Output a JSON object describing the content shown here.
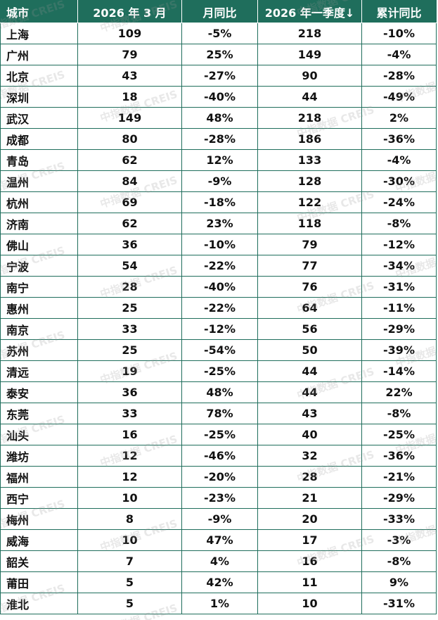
{
  "headers": [
    "城市",
    "2026 年 3 月",
    "月同比",
    "2026 年一季度↓",
    "累计同比"
  ],
  "watermark": "中指数据 CREIS",
  "colors": {
    "header_bg": "#1f6e5c",
    "positive": "#c00000",
    "negative": "#18a448"
  },
  "rows": [
    [
      "上海",
      "109",
      "-5%",
      "218",
      "-10%"
    ],
    [
      "广州",
      "79",
      "25%",
      "149",
      "-4%"
    ],
    [
      "北京",
      "43",
      "-27%",
      "90",
      "-28%"
    ],
    [
      "深圳",
      "18",
      "-40%",
      "44",
      "-49%"
    ],
    [
      "武汉",
      "149",
      "48%",
      "218",
      "2%"
    ],
    [
      "成都",
      "80",
      "-28%",
      "186",
      "-36%"
    ],
    [
      "青岛",
      "62",
      "12%",
      "133",
      "-4%"
    ],
    [
      "温州",
      "84",
      "-9%",
      "128",
      "-30%"
    ],
    [
      "杭州",
      "69",
      "-18%",
      "122",
      "-24%"
    ],
    [
      "济南",
      "62",
      "23%",
      "118",
      "-8%"
    ],
    [
      "佛山",
      "36",
      "-10%",
      "79",
      "-12%"
    ],
    [
      "宁波",
      "54",
      "-22%",
      "77",
      "-34%"
    ],
    [
      "南宁",
      "28",
      "-40%",
      "76",
      "-31%"
    ],
    [
      "惠州",
      "25",
      "-22%",
      "64",
      "-11%"
    ],
    [
      "南京",
      "33",
      "-12%",
      "56",
      "-29%"
    ],
    [
      "苏州",
      "25",
      "-54%",
      "50",
      "-39%"
    ],
    [
      "清远",
      "19",
      "-25%",
      "44",
      "-14%"
    ],
    [
      "泰安",
      "36",
      "48%",
      "44",
      "22%"
    ],
    [
      "东莞",
      "33",
      "78%",
      "43",
      "-8%"
    ],
    [
      "汕头",
      "16",
      "-25%",
      "40",
      "-25%"
    ],
    [
      "潍坊",
      "12",
      "-46%",
      "32",
      "-36%"
    ],
    [
      "福州",
      "12",
      "-20%",
      "28",
      "-21%"
    ],
    [
      "西宁",
      "10",
      "-23%",
      "21",
      "-29%"
    ],
    [
      "梅州",
      "8",
      "-9%",
      "20",
      "-33%"
    ],
    [
      "威海",
      "10",
      "47%",
      "17",
      "-3%"
    ],
    [
      "韶关",
      "7",
      "4%",
      "16",
      "-8%"
    ],
    [
      "莆田",
      "5",
      "42%",
      "11",
      "9%"
    ],
    [
      "淮北",
      "5",
      "1%",
      "10",
      "-31%"
    ]
  ]
}
